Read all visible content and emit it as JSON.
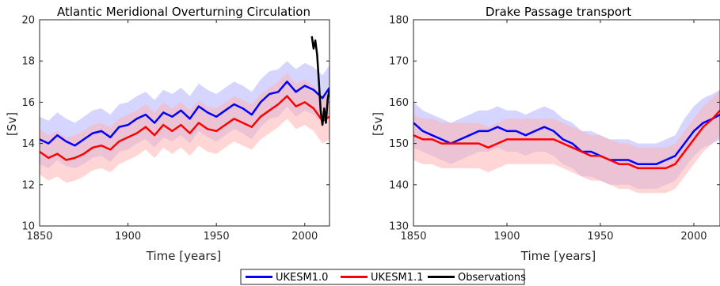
{
  "legend": {
    "placement": "bottom-center",
    "entries": [
      {
        "label": "UKESM1.0",
        "color": "#0000ff"
      },
      {
        "label": "UKESM1.1",
        "color": "#ff0000"
      },
      {
        "label": "Observations",
        "color": "#000000"
      }
    ]
  },
  "chart_data": [
    {
      "type": "line",
      "title": "Atlantic Meridional Overturning Circulation",
      "xlabel": "Time [years]",
      "ylabel": "[Sv]",
      "xlim": [
        1850,
        2014
      ],
      "ylim": [
        10,
        20
      ],
      "xticks": [
        1850,
        1900,
        1950,
        2000
      ],
      "yticks": [
        10,
        12,
        14,
        16,
        18,
        20
      ],
      "grid": false,
      "series": [
        {
          "name": "UKESM1.0",
          "color": "#0000ff",
          "band_color": "#b3b3ff",
          "x": [
            1850,
            1855,
            1860,
            1865,
            1870,
            1875,
            1880,
            1885,
            1890,
            1895,
            1900,
            1905,
            1910,
            1915,
            1920,
            1925,
            1930,
            1935,
            1940,
            1945,
            1950,
            1955,
            1960,
            1965,
            1970,
            1975,
            1980,
            1985,
            1990,
            1995,
            2000,
            2005,
            2010,
            2014
          ],
          "y": [
            14.2,
            14.0,
            14.4,
            14.1,
            13.9,
            14.2,
            14.5,
            14.6,
            14.3,
            14.8,
            14.9,
            15.2,
            15.4,
            15.0,
            15.5,
            15.3,
            15.6,
            15.2,
            15.8,
            15.5,
            15.3,
            15.6,
            15.9,
            15.7,
            15.4,
            16.0,
            16.4,
            16.5,
            17.0,
            16.5,
            16.8,
            16.6,
            16.2,
            16.7
          ],
          "band_low": [
            13.0,
            12.8,
            13.2,
            12.9,
            12.8,
            13.0,
            13.3,
            13.4,
            13.1,
            13.6,
            13.7,
            14.0,
            14.2,
            13.8,
            14.3,
            14.1,
            14.4,
            14.0,
            14.6,
            14.3,
            14.1,
            14.4,
            14.7,
            14.5,
            14.2,
            14.8,
            15.2,
            15.3,
            15.8,
            15.3,
            15.6,
            15.4,
            15.0,
            15.4
          ],
          "band_high": [
            15.3,
            15.1,
            15.5,
            15.2,
            15.0,
            15.3,
            15.6,
            15.7,
            15.4,
            15.9,
            16.0,
            16.3,
            16.5,
            16.1,
            16.6,
            16.4,
            16.7,
            16.3,
            16.9,
            16.6,
            16.4,
            16.7,
            17.0,
            16.8,
            16.5,
            17.1,
            17.5,
            17.6,
            18.0,
            17.6,
            17.9,
            17.7,
            17.3,
            17.8
          ]
        },
        {
          "name": "UKESM1.1",
          "color": "#ff0000",
          "band_color": "#ffb3b3",
          "x": [
            1850,
            1855,
            1860,
            1865,
            1870,
            1875,
            1880,
            1885,
            1890,
            1895,
            1900,
            1905,
            1910,
            1915,
            1920,
            1925,
            1930,
            1935,
            1940,
            1945,
            1950,
            1955,
            1960,
            1965,
            1970,
            1975,
            1980,
            1985,
            1990,
            1995,
            2000,
            2005,
            2010,
            2014
          ],
          "y": [
            13.6,
            13.3,
            13.5,
            13.2,
            13.3,
            13.5,
            13.8,
            13.9,
            13.7,
            14.1,
            14.3,
            14.5,
            14.8,
            14.4,
            14.9,
            14.6,
            14.9,
            14.5,
            15.0,
            14.7,
            14.6,
            14.9,
            15.2,
            15.0,
            14.8,
            15.3,
            15.6,
            15.9,
            16.3,
            15.8,
            16.0,
            15.7,
            15.1,
            15.3
          ],
          "band_low": [
            12.5,
            12.2,
            12.4,
            12.1,
            12.2,
            12.4,
            12.7,
            12.8,
            12.6,
            13.0,
            13.2,
            13.4,
            13.7,
            13.3,
            13.8,
            13.5,
            13.8,
            13.4,
            13.9,
            13.6,
            13.5,
            13.8,
            14.1,
            13.9,
            13.7,
            14.2,
            14.5,
            14.8,
            15.2,
            14.7,
            14.9,
            14.6,
            14.0,
            14.2
          ],
          "band_high": [
            14.7,
            14.4,
            14.6,
            14.3,
            14.4,
            14.6,
            14.9,
            15.0,
            14.8,
            15.2,
            15.4,
            15.6,
            15.9,
            15.5,
            16.0,
            15.7,
            16.0,
            15.6,
            16.1,
            15.8,
            15.7,
            16.0,
            16.3,
            16.1,
            15.9,
            16.4,
            16.7,
            17.0,
            17.4,
            16.9,
            17.1,
            16.8,
            16.2,
            16.4
          ]
        },
        {
          "name": "Observations",
          "color": "#000000",
          "x": [
            2004,
            2005,
            2006,
            2007,
            2008,
            2009,
            2010,
            2011,
            2012,
            2013,
            2014
          ],
          "y": [
            19.2,
            18.6,
            19.0,
            18.3,
            17.0,
            15.6,
            14.9,
            15.7,
            15.0,
            16.2,
            16.6
          ]
        }
      ]
    },
    {
      "type": "line",
      "title": "Drake Passage transport",
      "xlabel": "Time [years]",
      "ylabel": "[Sv]",
      "xlim": [
        1850,
        2014
      ],
      "ylim": [
        130,
        180
      ],
      "xticks": [
        1850,
        1900,
        1950,
        2000
      ],
      "yticks": [
        130,
        140,
        150,
        160,
        170,
        180
      ],
      "grid": false,
      "series": [
        {
          "name": "UKESM1.0",
          "color": "#0000ff",
          "band_color": "#b3b3ff",
          "x": [
            1850,
            1855,
            1860,
            1865,
            1870,
            1875,
            1880,
            1885,
            1890,
            1895,
            1900,
            1905,
            1910,
            1915,
            1920,
            1925,
            1930,
            1935,
            1940,
            1945,
            1950,
            1955,
            1960,
            1965,
            1970,
            1975,
            1980,
            1985,
            1990,
            1995,
            2000,
            2005,
            2010,
            2014
          ],
          "y": [
            155,
            153,
            152,
            151,
            150,
            151,
            152,
            153,
            153,
            154,
            153,
            153,
            152,
            153,
            154,
            153,
            151,
            150,
            148,
            148,
            147,
            146,
            146,
            146,
            145,
            145,
            145,
            146,
            147,
            150,
            153,
            155,
            156,
            157
          ],
          "band_low": [
            149,
            148,
            147,
            146,
            145,
            146,
            147,
            148,
            148,
            149,
            148,
            148,
            147,
            148,
            148,
            147,
            145,
            144,
            142,
            142,
            141,
            140,
            140,
            140,
            139,
            139,
            139,
            140,
            141,
            144,
            147,
            149,
            150,
            151
          ],
          "band_high": [
            160,
            158,
            157,
            156,
            155,
            156,
            157,
            158,
            158,
            159,
            158,
            158,
            157,
            158,
            159,
            158,
            156,
            155,
            153,
            153,
            152,
            151,
            151,
            151,
            150,
            150,
            150,
            151,
            152,
            156,
            159,
            161,
            162,
            163
          ]
        },
        {
          "name": "UKESM1.1",
          "color": "#ff0000",
          "band_color": "#ffb3b3",
          "x": [
            1850,
            1855,
            1860,
            1865,
            1870,
            1875,
            1880,
            1885,
            1890,
            1895,
            1900,
            1905,
            1910,
            1915,
            1920,
            1925,
            1930,
            1935,
            1940,
            1945,
            1950,
            1955,
            1960,
            1965,
            1970,
            1975,
            1980,
            1985,
            1990,
            1995,
            2000,
            2005,
            2010,
            2014
          ],
          "y": [
            152,
            151,
            151,
            150,
            150,
            150,
            150,
            150,
            149,
            150,
            151,
            151,
            151,
            151,
            151,
            151,
            150,
            149,
            148,
            147,
            147,
            146,
            145,
            145,
            144,
            144,
            144,
            144,
            145,
            148,
            151,
            154,
            156,
            158
          ],
          "band_low": [
            146,
            145,
            145,
            144,
            144,
            144,
            144,
            144,
            143,
            144,
            145,
            145,
            145,
            145,
            145,
            145,
            144,
            143,
            142,
            141,
            141,
            140,
            139,
            139,
            138,
            138,
            138,
            138,
            139,
            142,
            145,
            148,
            150,
            152
          ],
          "band_high": [
            157,
            156,
            156,
            155,
            155,
            155,
            155,
            155,
            154,
            155,
            156,
            156,
            156,
            156,
            156,
            156,
            155,
            154,
            153,
            152,
            152,
            151,
            150,
            150,
            149,
            149,
            149,
            149,
            150,
            153,
            156,
            159,
            161,
            163
          ]
        }
      ]
    }
  ]
}
